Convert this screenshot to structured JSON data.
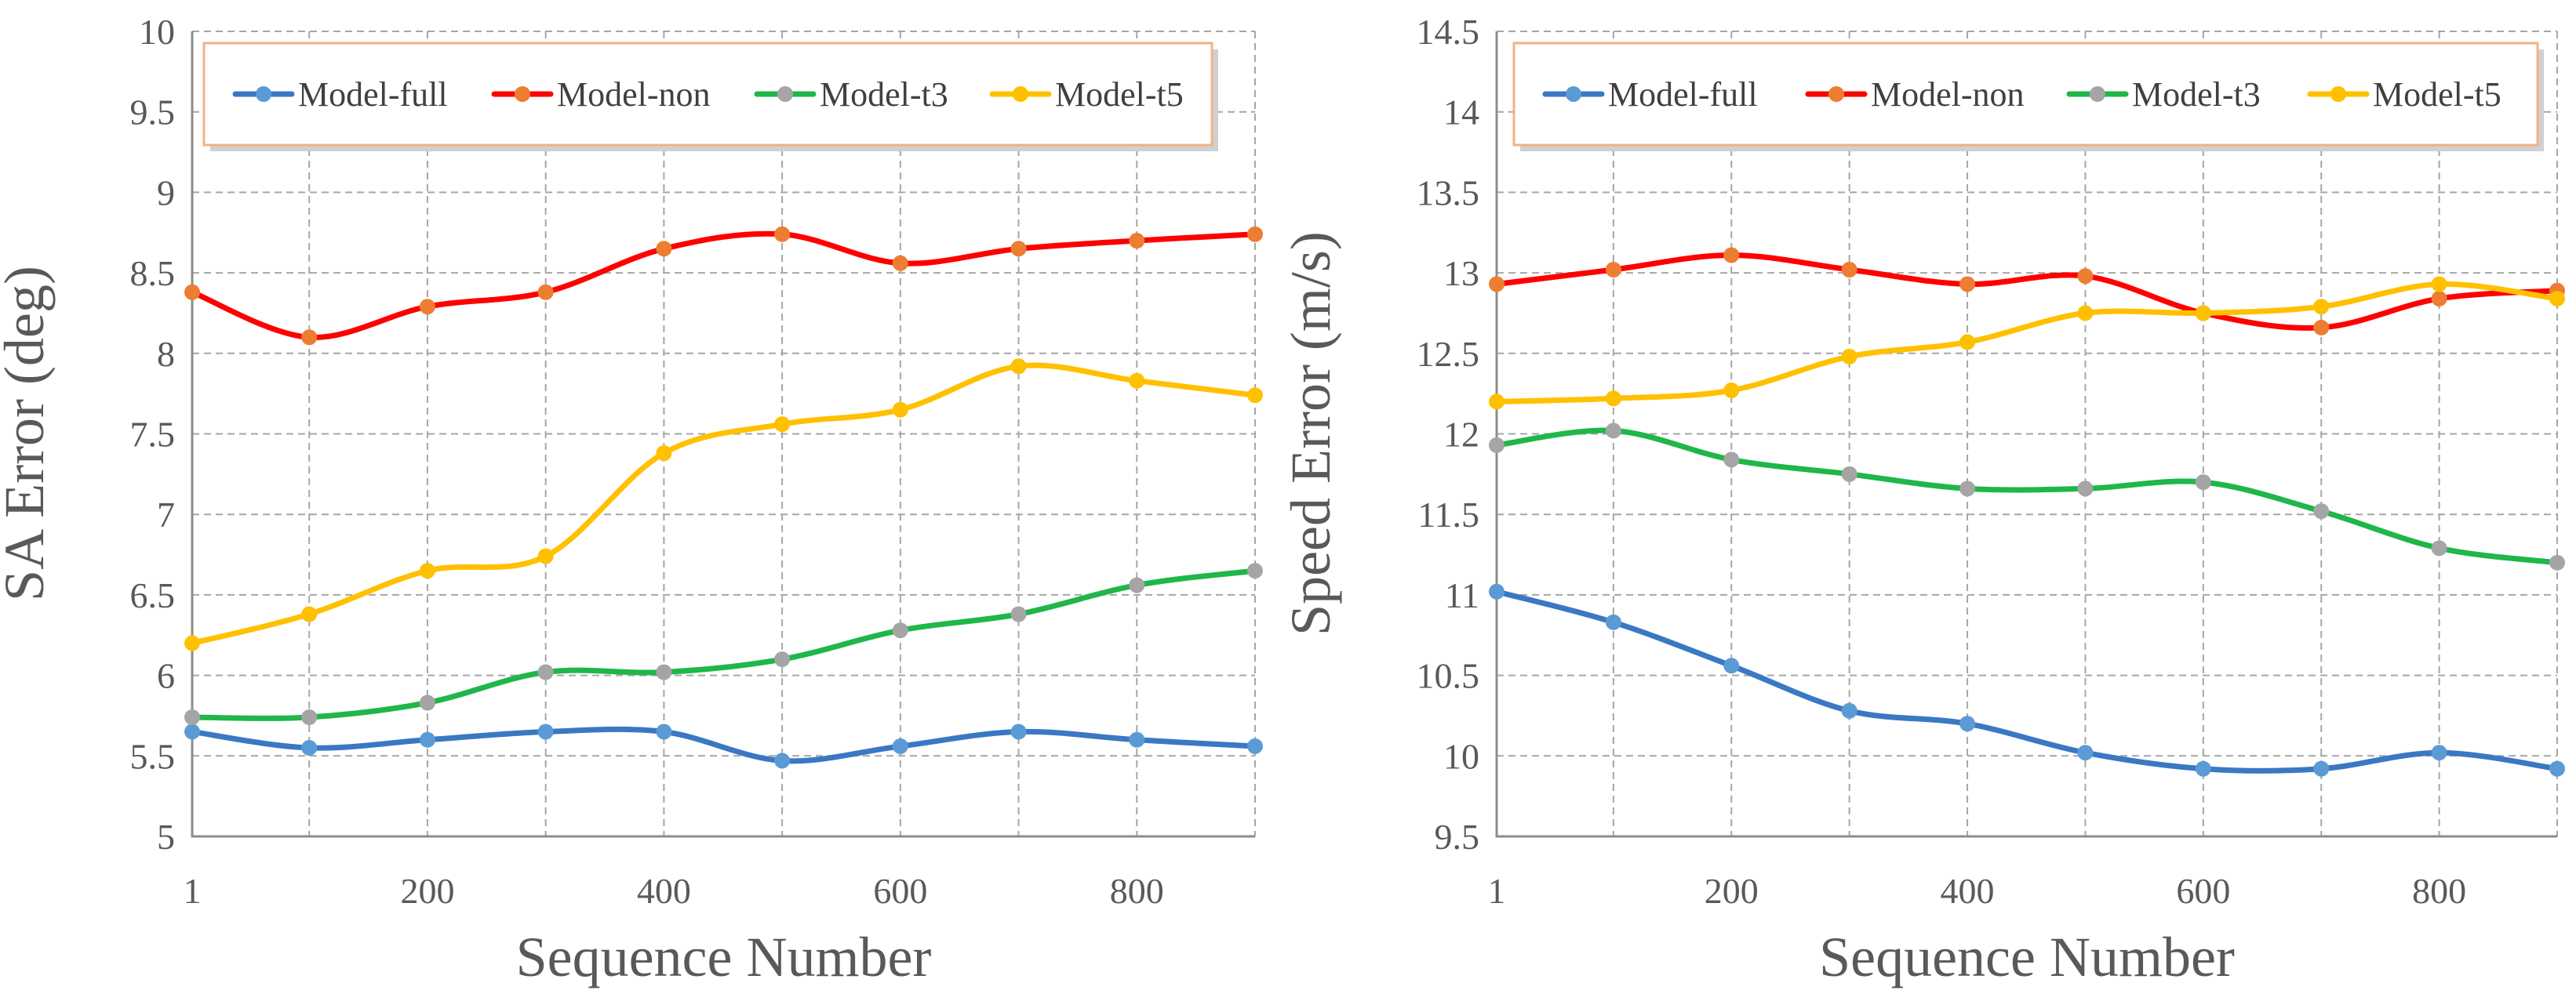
{
  "figure_title": "Error vs sequence number for SA and speed",
  "colors": {
    "Model-full": "#3a78c3",
    "Model-non": "#ff0000",
    "Model-t3": "#1fb64a",
    "Model-t5": "#ffc000",
    "marker-Model-full": "#5b9bd5",
    "marker-Model-non": "#ed7d31",
    "marker-Model-t3": "#a5a5a5",
    "marker-Model-t5": "#ffc000",
    "grid": "#a6a6a6",
    "legend_border": "#f4b183"
  },
  "chart_data": [
    {
      "type": "line",
      "title": "",
      "xlabel": "Sequence Number",
      "ylabel": "SA Error (deg)",
      "x": [
        1,
        100,
        200,
        300,
        400,
        500,
        600,
        700,
        800,
        900
      ],
      "xlim": [
        1,
        900
      ],
      "x_ticks": [
        1,
        200,
        400,
        600,
        800
      ],
      "x_tick_labels": [
        "1",
        "200",
        "400",
        "600",
        "800"
      ],
      "ylim": [
        5,
        10
      ],
      "y_ticks": [
        5,
        5.5,
        6,
        6.5,
        7,
        7.5,
        8,
        8.5,
        9,
        9.5,
        10
      ],
      "y_tick_labels": [
        "5",
        "5.5",
        "6",
        "6.5",
        "7",
        "7.5",
        "8",
        "8.5",
        "9",
        "9.5",
        "10"
      ],
      "grid": true,
      "legend_position": "top",
      "series": [
        {
          "name": "Model-full",
          "values": [
            5.65,
            5.55,
            5.6,
            5.65,
            5.65,
            5.47,
            5.56,
            5.65,
            5.6,
            5.56
          ]
        },
        {
          "name": "Model-non",
          "values": [
            8.38,
            8.1,
            8.29,
            8.38,
            8.65,
            8.74,
            8.56,
            8.65,
            8.7,
            8.74
          ]
        },
        {
          "name": "Model-t3",
          "values": [
            5.74,
            5.74,
            5.83,
            6.02,
            6.02,
            6.1,
            6.28,
            6.38,
            6.56,
            6.65
          ]
        },
        {
          "name": "Model-t5",
          "values": [
            6.2,
            6.38,
            6.65,
            6.74,
            7.38,
            7.56,
            7.65,
            7.92,
            7.83,
            7.74
          ]
        }
      ]
    },
    {
      "type": "line",
      "title": "",
      "xlabel": "Sequence Number",
      "ylabel": "Speed Error (m/s)",
      "x": [
        1,
        100,
        200,
        300,
        400,
        500,
        600,
        700,
        800,
        900
      ],
      "xlim": [
        1,
        900
      ],
      "x_ticks": [
        1,
        200,
        400,
        600,
        800
      ],
      "x_tick_labels": [
        "1",
        "200",
        "400",
        "600",
        "800"
      ],
      "ylim": [
        9.5,
        14.5
      ],
      "y_ticks": [
        9.5,
        10,
        10.5,
        11,
        11.5,
        12,
        12.5,
        13,
        13.5,
        14,
        14.5
      ],
      "y_tick_labels": [
        "9.5",
        "10",
        "10.5",
        "11",
        "11.5",
        "12",
        "12.5",
        "13",
        "13.5",
        "14",
        "14.5"
      ],
      "grid": true,
      "legend_position": "top",
      "series": [
        {
          "name": "Model-full",
          "values": [
            11.02,
            10.83,
            10.56,
            10.28,
            10.2,
            10.02,
            9.92,
            9.92,
            10.02,
            9.92
          ]
        },
        {
          "name": "Model-non",
          "values": [
            12.93,
            13.02,
            13.11,
            13.02,
            12.93,
            12.98,
            12.75,
            12.66,
            12.84,
            12.89
          ]
        },
        {
          "name": "Model-t3",
          "values": [
            11.93,
            12.02,
            11.84,
            11.75,
            11.66,
            11.66,
            11.7,
            11.52,
            11.29,
            11.2
          ]
        },
        {
          "name": "Model-t5",
          "values": [
            12.2,
            12.22,
            12.27,
            12.48,
            12.57,
            12.75,
            12.75,
            12.79,
            12.93,
            12.84
          ]
        }
      ]
    }
  ]
}
